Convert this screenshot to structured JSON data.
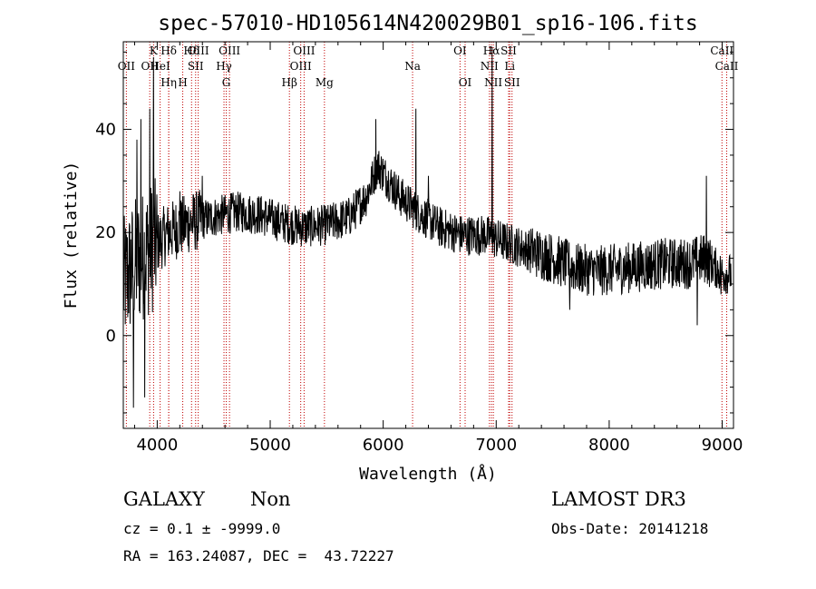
{
  "chart_data": {
    "type": "line",
    "title": "spec-57010-HD105614N420029B01_sp16-106.fits",
    "xlabel": "Wavelength (Å)",
    "ylabel": "Flux (relative)",
    "xlim": [
      3700,
      9100
    ],
    "ylim": [
      -18,
      57
    ],
    "xticks": [
      4000,
      5000,
      6000,
      7000,
      8000,
      9000
    ],
    "yticks": [
      0,
      20,
      40
    ],
    "continuum": [
      {
        "x": 3700,
        "y": 10
      },
      {
        "x": 3800,
        "y": 14
      },
      {
        "x": 3900,
        "y": 16
      },
      {
        "x": 4000,
        "y": 18
      },
      {
        "x": 4100,
        "y": 20
      },
      {
        "x": 4200,
        "y": 21
      },
      {
        "x": 4300,
        "y": 22
      },
      {
        "x": 4500,
        "y": 23
      },
      {
        "x": 4700,
        "y": 24
      },
      {
        "x": 4900,
        "y": 23.5
      },
      {
        "x": 5100,
        "y": 22
      },
      {
        "x": 5300,
        "y": 21
      },
      {
        "x": 5500,
        "y": 21.5
      },
      {
        "x": 5700,
        "y": 23
      },
      {
        "x": 5850,
        "y": 27
      },
      {
        "x": 5950,
        "y": 33
      },
      {
        "x": 6050,
        "y": 30
      },
      {
        "x": 6150,
        "y": 27
      },
      {
        "x": 6300,
        "y": 24
      },
      {
        "x": 6500,
        "y": 21
      },
      {
        "x": 6700,
        "y": 19.5
      },
      {
        "x": 6900,
        "y": 19.5
      },
      {
        "x": 7100,
        "y": 18
      },
      {
        "x": 7300,
        "y": 16.5
      },
      {
        "x": 7500,
        "y": 15
      },
      {
        "x": 7700,
        "y": 13
      },
      {
        "x": 7900,
        "y": 12.5
      },
      {
        "x": 8100,
        "y": 13
      },
      {
        "x": 8300,
        "y": 13.5
      },
      {
        "x": 8500,
        "y": 14
      },
      {
        "x": 8700,
        "y": 14
      },
      {
        "x": 8850,
        "y": 15
      },
      {
        "x": 9000,
        "y": 12
      },
      {
        "x": 9100,
        "y": 12
      }
    ],
    "features": [
      {
        "x": 3968,
        "y": 54
      },
      {
        "x": 3934,
        "y": 44
      },
      {
        "x": 3790,
        "y": -14
      },
      {
        "x": 3855,
        "y": 42
      },
      {
        "x": 3890,
        "y": -12
      },
      {
        "x": 3820,
        "y": 38
      },
      {
        "x": 5936,
        "y": 42
      },
      {
        "x": 6290,
        "y": 44
      },
      {
        "x": 6963,
        "y": 56
      },
      {
        "x": 6975,
        "y": 18
      },
      {
        "x": 8860,
        "y": 31
      },
      {
        "x": 8780,
        "y": 2
      },
      {
        "x": 8990,
        "y": 8
      },
      {
        "x": 4200,
        "y": 28
      },
      {
        "x": 4400,
        "y": 31
      },
      {
        "x": 6400,
        "y": 31
      },
      {
        "x": 7650,
        "y": 5
      }
    ],
    "spectral_lines": [
      {
        "x": 3727,
        "row": 1,
        "label": "OII"
      },
      {
        "x": 3934,
        "row": 1,
        "label": "OII"
      },
      {
        "x": 3968,
        "row": 0,
        "label": "K"
      },
      {
        "x": 4026,
        "row": 1,
        "label": "HeI"
      },
      {
        "x": 4102,
        "row": 0,
        "label": "Hδ"
      },
      {
        "x": 4102,
        "row": 2,
        "label": "Hη"
      },
      {
        "x": 4226,
        "row": 2,
        "label": "H"
      },
      {
        "x": 4304,
        "row": 0,
        "label": "Hδ"
      },
      {
        "x": 4340,
        "row": 1,
        "label": "SII"
      },
      {
        "x": 4363,
        "row": 0,
        "label": "OIII"
      },
      {
        "x": 4591,
        "row": 1,
        "label": "Hγ"
      },
      {
        "x": 4611,
        "row": 2,
        "label": "G"
      },
      {
        "x": 4640,
        "row": 0,
        "label": "OIII"
      },
      {
        "x": 5170,
        "row": 2,
        "label": "Hβ"
      },
      {
        "x": 5270,
        "row": 1,
        "label": "OIII"
      },
      {
        "x": 5300,
        "row": 0,
        "label": "OIII"
      },
      {
        "x": 5480,
        "row": 2,
        "label": "Mg"
      },
      {
        "x": 6260,
        "row": 1,
        "label": "Na"
      },
      {
        "x": 6680,
        "row": 0,
        "label": "OI"
      },
      {
        "x": 6725,
        "row": 2,
        "label": "OI"
      },
      {
        "x": 6940,
        "row": 1,
        "label": "NII"
      },
      {
        "x": 6958,
        "row": 0,
        "label": "Hα"
      },
      {
        "x": 6975,
        "row": 2,
        "label": "NII"
      },
      {
        "x": 7110,
        "row": 0,
        "label": "SII"
      },
      {
        "x": 7120,
        "row": 1,
        "label": "Li"
      },
      {
        "x": 7140,
        "row": 2,
        "label": "SII"
      },
      {
        "x": 8998,
        "row": 0,
        "label": "CaII"
      },
      {
        "x": 9040,
        "row": 1,
        "label": "CaII"
      }
    ],
    "line_color": "#000000",
    "marker_color": "#c00000"
  },
  "info": {
    "object_class": "GALAXY",
    "subclass": "Non",
    "survey": "LAMOST DR3",
    "cz_line": "cz = 0.1 ± -9999.0",
    "obs_date": "Obs-Date: 20141218",
    "coords": "RA = 163.24087, DEC =  43.72227"
  }
}
